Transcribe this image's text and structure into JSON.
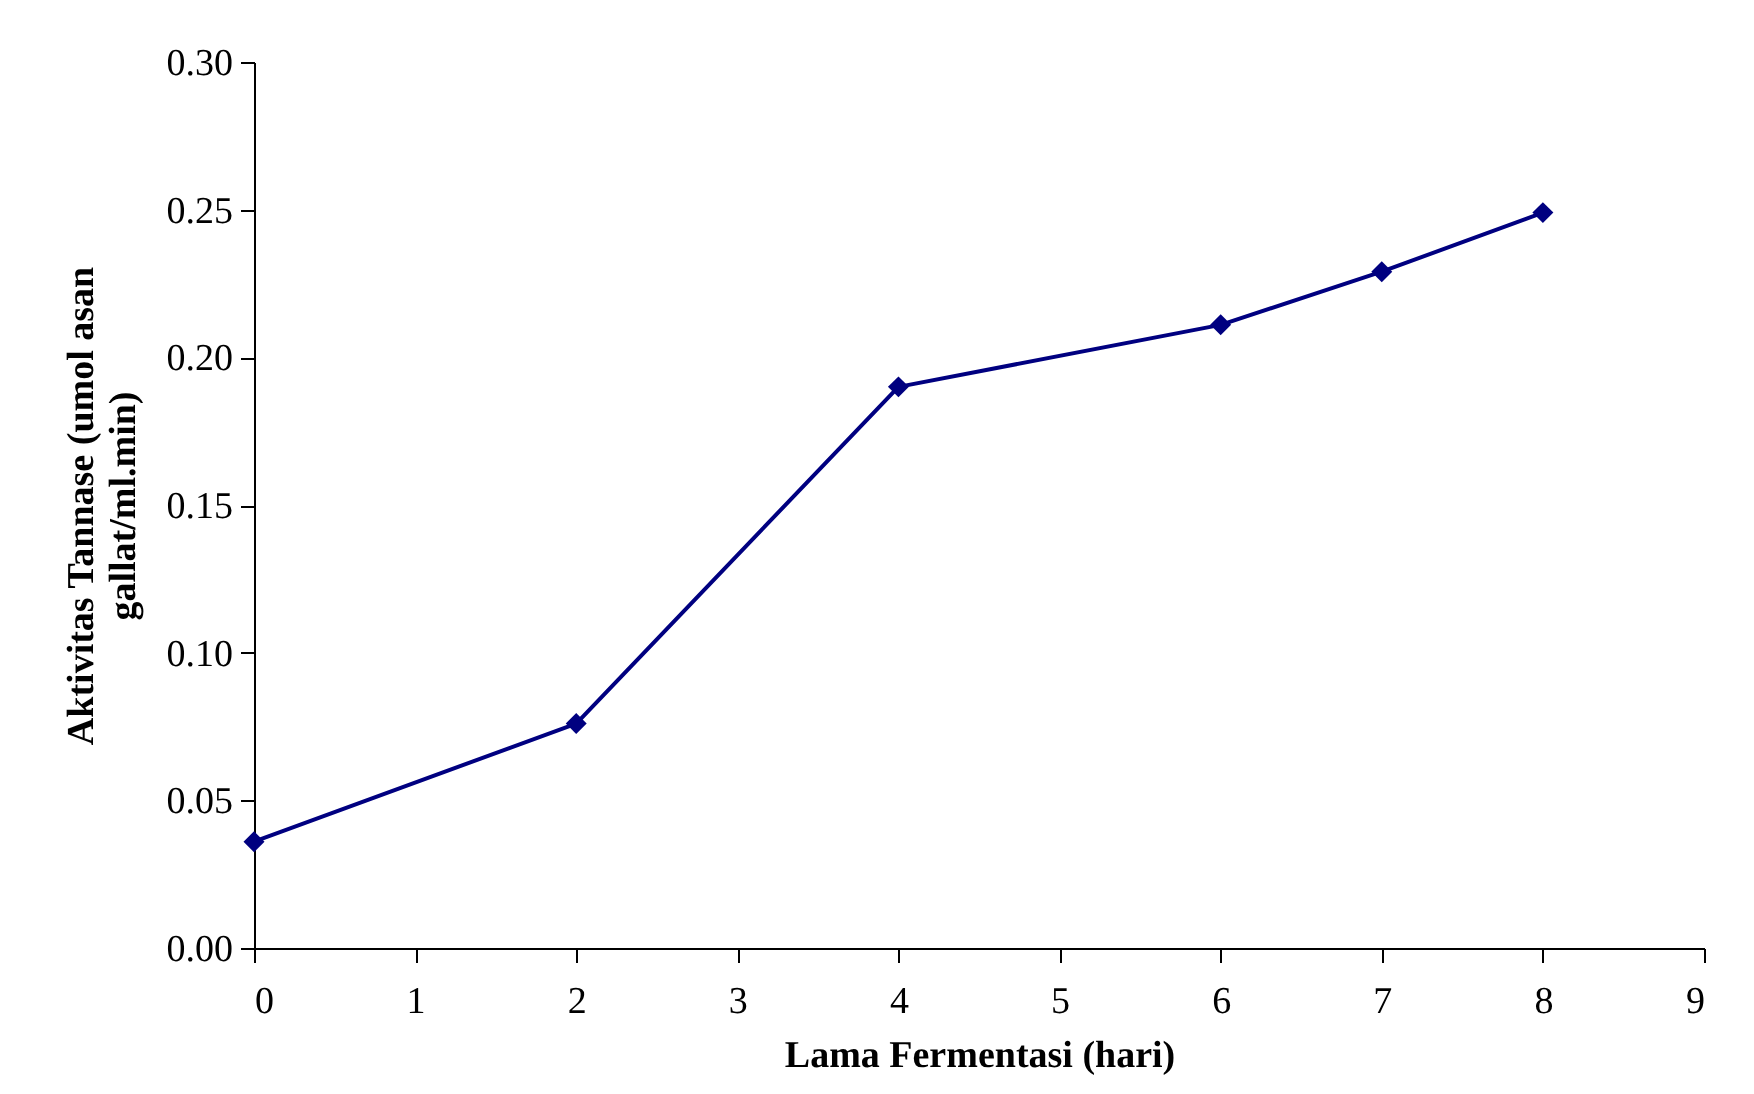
{
  "chart_data": {
    "type": "line",
    "xlabel": "Lama Fermentasi (hari)",
    "ylabel": "Aktivitas Tannase (umol asan\ngallat/ml.min)",
    "x": [
      0,
      2,
      4,
      6,
      7,
      8
    ],
    "series": [
      {
        "color": "#000080",
        "values": [
          0.036,
          0.076,
          0.19,
          0.211,
          0.229,
          0.249
        ]
      }
    ],
    "xlim": [
      0,
      9
    ],
    "xticks": [
      0,
      1,
      2,
      3,
      4,
      5,
      6,
      7,
      8,
      9
    ],
    "ylim": [
      0,
      0.3
    ],
    "yticks": [
      {
        "value": 0,
        "label": "0.00"
      },
      {
        "value": 0.05,
        "label": "0.05"
      },
      {
        "value": 0.1,
        "label": "0.10"
      },
      {
        "value": 0.15,
        "label": "0.15"
      },
      {
        "value": 0.2,
        "label": "0.20"
      },
      {
        "value": 0.25,
        "label": "0.25"
      },
      {
        "value": 0.3,
        "label": "0.30"
      }
    ],
    "grid": false,
    "marker": "diamond",
    "line_style": "solid"
  }
}
